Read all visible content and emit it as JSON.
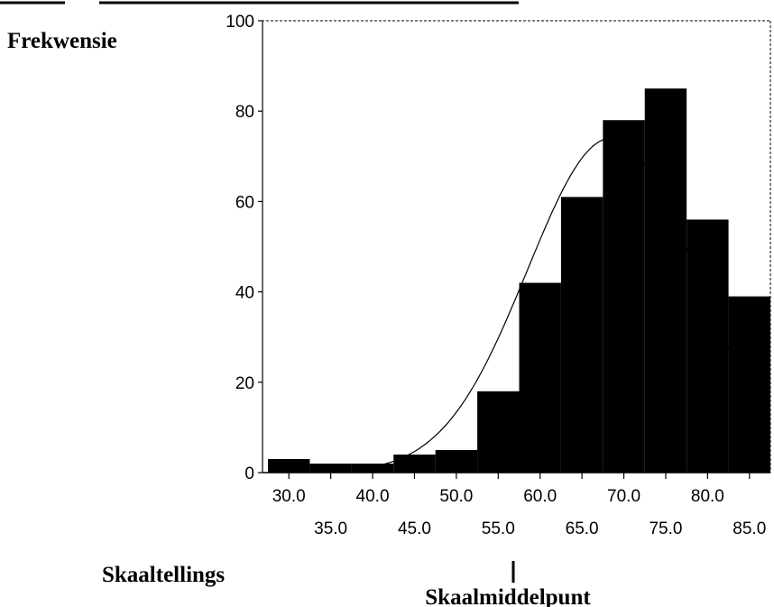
{
  "chart_data": {
    "type": "bar",
    "ylabel": "Frekwensie",
    "xlabel": "Skaaltellings",
    "annotation": "Skaalmiddelpunt",
    "annotation_x": 55.0,
    "bin_width": 5,
    "ylim": [
      0,
      100
    ],
    "xlim": [
      27.5,
      87.5
    ],
    "yticks": [
      0,
      20,
      40,
      60,
      80,
      100
    ],
    "xticks_upper": [
      "30.0",
      "40.0",
      "50.0",
      "60.0",
      "70.0",
      "80.0"
    ],
    "xticks_lower": [
      "35.0",
      "45.0",
      "55.0",
      "65.0",
      "75.0",
      "85.0"
    ],
    "categories": [
      30,
      35,
      40,
      45,
      50,
      55,
      60,
      65,
      70,
      75,
      80,
      85
    ],
    "values": [
      3,
      2,
      2,
      4,
      5,
      18,
      42,
      61,
      78,
      85,
      56,
      39
    ],
    "normal_curve": {
      "mean": 68.5,
      "sd": 10,
      "peak": 74
    },
    "colors": {
      "bars": "#000000",
      "curve": "#000000",
      "background": "#ffffff"
    }
  }
}
